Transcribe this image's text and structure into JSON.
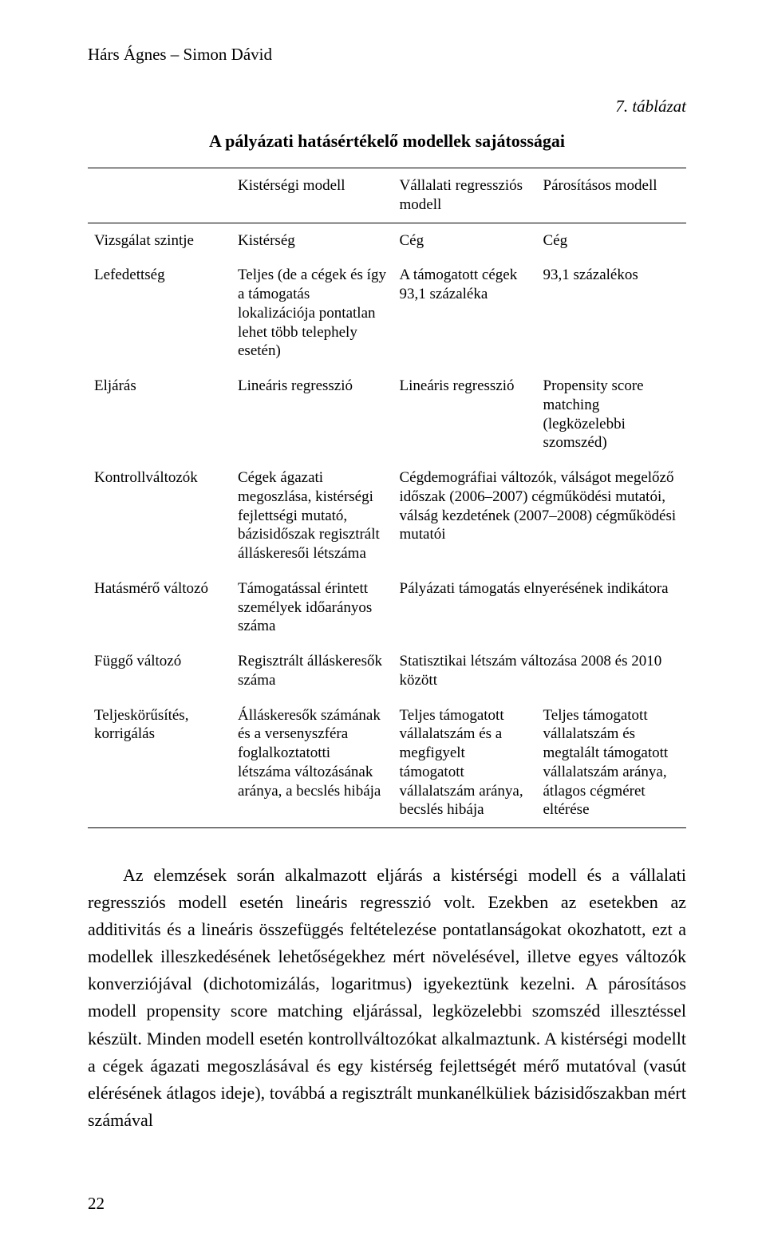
{
  "page": {
    "running_head": "Hárs Ágnes – Simon Dávid",
    "page_number": "22"
  },
  "table": {
    "number_label": "7. táblázat",
    "title": "A pályázati hatásértékelő modellek sajátosságai",
    "type": "table",
    "fonts": {
      "header_fontsize": 19,
      "cell_fontsize": 19,
      "title_fontsize": 22,
      "number_fontsize": 21
    },
    "colors": {
      "text": "#000000",
      "border": "#000000",
      "background": "#ffffff"
    },
    "column_widths_pct": [
      24,
      27,
      24,
      25
    ],
    "columns": [
      "",
      "Kistérségi modell",
      "Vállalati regressziós modell",
      "Párosításos modell"
    ],
    "rows": [
      {
        "label": "Vizsgálat szintje",
        "c1": "Kistérség",
        "c2": "Cég",
        "c3": "Cég",
        "span23": false
      },
      {
        "label": "Lefedettség",
        "c1": "Teljes (de a cégek és így a támogatás lokalizációja pontatlan lehet több telephely esetén)",
        "c2": "A támogatott cégek 93,1 százaléka",
        "c3": "93,1 százalékos",
        "span23": false
      },
      {
        "label": "Eljárás",
        "c1": "Lineáris regresszió",
        "c2": "Lineáris regresszió",
        "c3": "Propensity score matching (legközelebbi szomszéd)",
        "span23": false
      },
      {
        "label": "Kontrollváltozók",
        "c1": "Cégek ágazati megoszlása, kistérségi fejlettségi mutató, bázisidőszak regisztrált álláskeresői létszáma",
        "c23": "Cégdemográfiai változók, válságot megelőző időszak (2006–2007) cégműködési mutatói, válság kezdetének (2007–2008) cégműködési mutatói",
        "span23": true
      },
      {
        "label": "Hatásmérő változó",
        "c1": "Támogatással érintett személyek időarányos száma",
        "c23": "Pályázati támogatás elnyerésének indikátora",
        "span23": true
      },
      {
        "label": "Függő változó",
        "c1": "Regisztrált álláskeresők száma",
        "c23": "Statisztikai létszám változása 2008 és 2010 között",
        "span23": true
      },
      {
        "label": "Teljeskörűsítés, korrigálás",
        "c1": "Álláskeresők számának és a versenyszféra foglalkoztatotti létszáma változásának aránya, a becslés hibája",
        "c2": "Teljes támogatott vállalatszám és a megfigyelt támogatott vállalatszám aránya, becslés hibája",
        "c3": "Teljes támogatott vállalatszám és megtalált támogatott vállalatszám aránya, átlagos cégméret eltérése",
        "span23": false
      }
    ]
  },
  "body": {
    "paragraph": "Az elemzések során alkalmazott eljárás a kistérségi modell és a vállalati regressziós modell esetén lineáris regresszió volt. Ezekben az esetekben az additivitás és a lineáris összefüggés feltételezése pontatlanságokat okozhatott, ezt a modellek illeszkedésének lehetőségekhez mért növelésével, illetve egyes változók konverziójával (dichotomizálás, logaritmus) igyekeztünk kezelni. A párosításos modell propensity score matching eljárással, legközelebbi szomszéd illesztéssel készült. Minden modell esetén kontrollváltozókat alkalmaztunk. A kistérségi modellt a cégek ágazati megoszlásával és egy kistérség fejlettségét mérő mutatóval (vasút elérésének átlagos ideje), továbbá a regisztrált munkanélküliek bázisidőszakban mért számával"
  }
}
